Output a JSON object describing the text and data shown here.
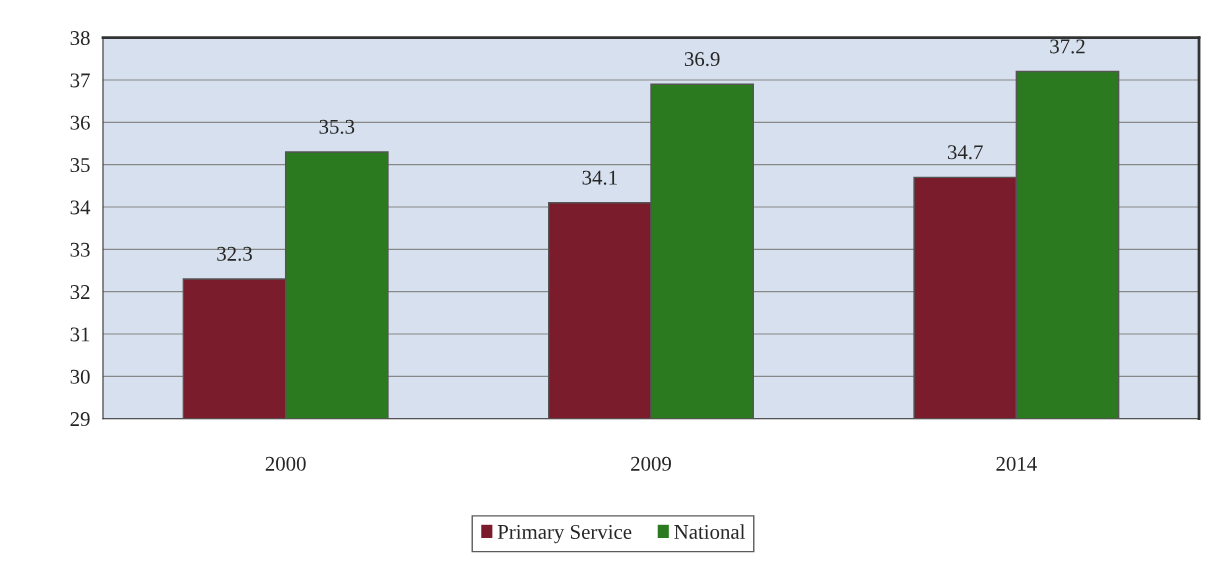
{
  "chart_data": {
    "type": "bar",
    "categories": [
      "2000",
      "2009",
      "2014"
    ],
    "series": [
      {
        "name": "Primary Service",
        "color": "#7a1c2b",
        "values": [
          32.3,
          34.1,
          34.7
        ]
      },
      {
        "name": "National",
        "color": "#2b7a1f",
        "values": [
          35.3,
          36.9,
          37.2
        ]
      }
    ],
    "ylim": [
      29,
      38
    ],
    "yticks": [
      29,
      30,
      31,
      32,
      33,
      34,
      35,
      36,
      37,
      38
    ],
    "grid": "y",
    "legend": "bottom",
    "data_labels": true
  }
}
